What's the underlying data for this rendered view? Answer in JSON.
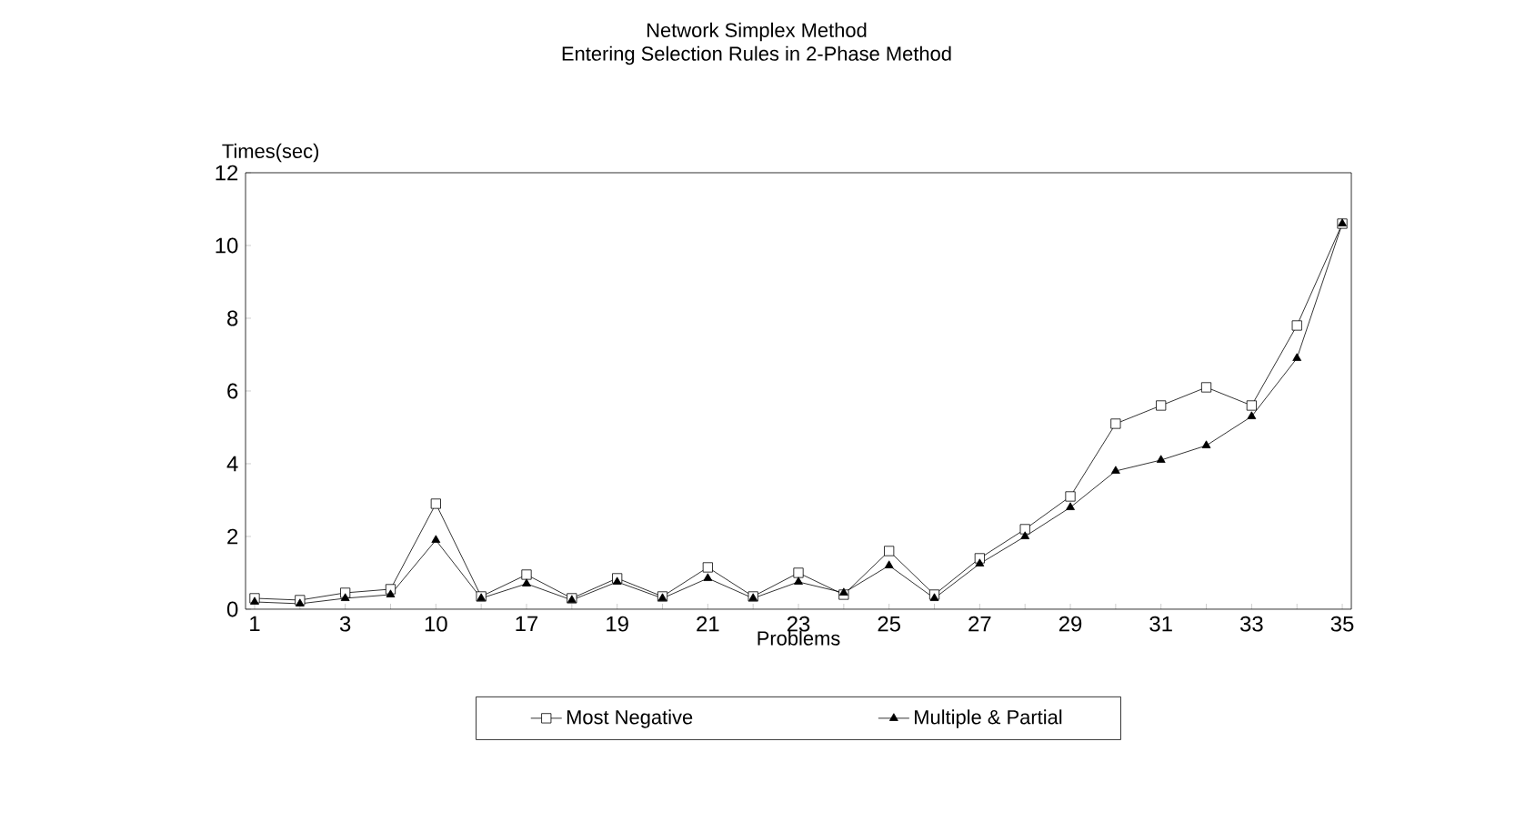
{
  "chart_data": {
    "type": "line",
    "title": "Network Simplex Method",
    "subtitle": "Entering Selection Rules in 2-Phase Method",
    "xlabel": "Problems",
    "ylabel": "Times(sec)",
    "categories": [
      "1",
      null,
      "3",
      null,
      "10",
      null,
      "17",
      null,
      "19",
      null,
      "21",
      null,
      "23",
      null,
      "25",
      null,
      "27",
      null,
      "29",
      null,
      "31",
      null,
      "33",
      null,
      "35"
    ],
    "series": [
      {
        "name": "Most Negative",
        "color": "#000000",
        "marker": "square",
        "values": [
          0.3,
          0.25,
          0.45,
          0.55,
          2.9,
          0.35,
          0.95,
          0.3,
          0.85,
          0.35,
          1.15,
          0.35,
          1.0,
          0.4,
          1.6,
          0.4,
          1.4,
          2.2,
          3.1,
          5.1,
          5.6,
          6.1,
          5.6,
          7.8,
          10.6
        ]
      },
      {
        "name": "Multiple & Partial",
        "color": "#000000",
        "marker": "triangle",
        "values": [
          0.2,
          0.15,
          0.3,
          0.4,
          1.9,
          0.3,
          0.7,
          0.25,
          0.75,
          0.3,
          0.85,
          0.3,
          0.75,
          0.45,
          1.2,
          0.3,
          1.25,
          2.0,
          2.8,
          3.8,
          4.1,
          4.5,
          5.3,
          6.9,
          10.6
        ]
      }
    ],
    "ylim": [
      0,
      12
    ],
    "yticks": [
      0,
      2,
      4,
      6,
      8,
      10,
      12
    ],
    "grid": false,
    "legend": "bottom",
    "line_style": "solid"
  }
}
